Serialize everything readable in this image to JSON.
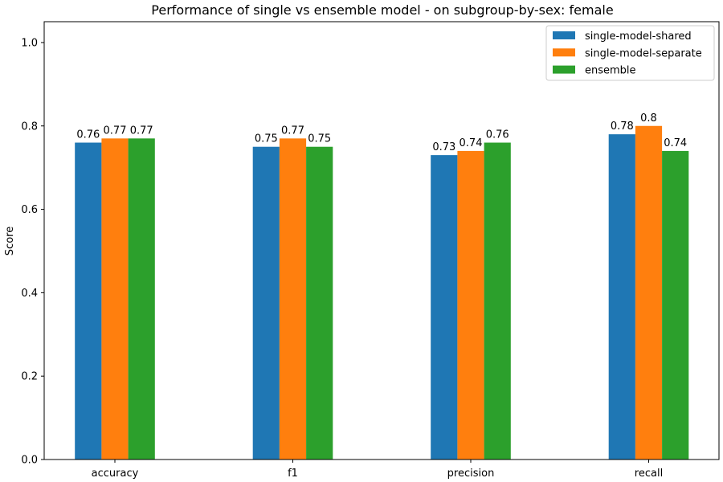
{
  "chart_data": {
    "type": "bar",
    "title": "Performance of single vs ensemble model - on subgroup-by-sex: female",
    "xlabel": "",
    "ylabel": "Score",
    "categories": [
      "accuracy",
      "f1",
      "precision",
      "recall"
    ],
    "series": [
      {
        "name": "single-model-shared",
        "color": "#1f77b4",
        "values": [
          0.76,
          0.75,
          0.73,
          0.78
        ]
      },
      {
        "name": "single-model-separate",
        "color": "#ff7f0e",
        "values": [
          0.77,
          0.77,
          0.74,
          0.8
        ]
      },
      {
        "name": "ensemble",
        "color": "#2ca02c",
        "values": [
          0.77,
          0.75,
          0.76,
          0.74
        ]
      }
    ],
    "ylim": [
      0,
      1.05
    ],
    "yticks": [
      "0.0",
      "0.2",
      "0.4",
      "0.6",
      "0.8",
      "1.0"
    ],
    "grid": false,
    "legend_position": "top-right"
  }
}
